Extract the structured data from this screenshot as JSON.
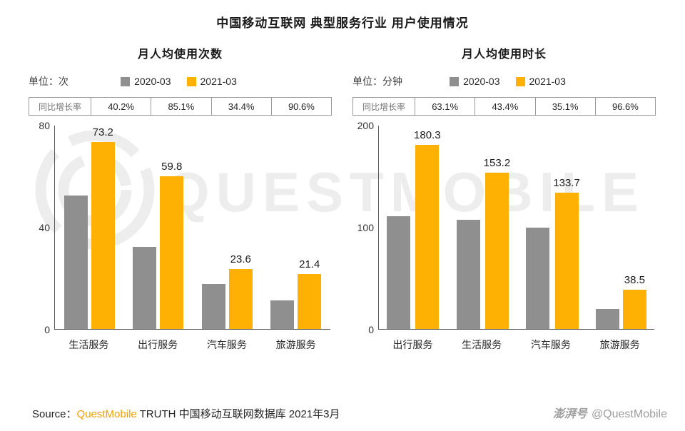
{
  "page": {
    "title": "中国移动互联网 典型服务行业 用户使用情况",
    "watermark": "QUESTMOBILE"
  },
  "footer": {
    "source_prefix": "Source：",
    "source_brand": "QuestMobile",
    "source_suffix": " TRUTH 中国移动互联网数据库 2021年3月",
    "credit_logo": "澎湃号",
    "credit_handle": "@QuestMobile"
  },
  "colors": {
    "series_2020": "#8f8f8f",
    "series_2021": "#ffb103",
    "brand_orange": "#f0a000",
    "watermark": "#ededed"
  },
  "chart_data": [
    {
      "type": "bar",
      "title": "月人均使用次数",
      "unit_label": "单位：次",
      "growth_label": "同比增长率",
      "growth_rates": [
        "40.2%",
        "85.1%",
        "34.4%",
        "90.6%"
      ],
      "categories": [
        "生活服务",
        "出行服务",
        "汽车服务",
        "旅游服务"
      ],
      "series": [
        {
          "name": "2020-03",
          "color_key": "series_2020",
          "show_labels": false,
          "values": [
            52.2,
            32.3,
            17.6,
            11.2
          ]
        },
        {
          "name": "2021-03",
          "color_key": "series_2021",
          "show_labels": true,
          "values": [
            73.2,
            59.8,
            23.6,
            21.4
          ]
        }
      ],
      "ylim": [
        0,
        80
      ],
      "yticks": [
        0,
        40,
        80
      ],
      "legend_position": "top",
      "grid": false
    },
    {
      "type": "bar",
      "title": "月人均使用时长",
      "unit_label": "单位：分钟",
      "growth_label": "同比增长率",
      "growth_rates": [
        "63.1%",
        "43.4%",
        "35.1%",
        "96.6%"
      ],
      "categories": [
        "出行服务",
        "生活服务",
        "汽车服务",
        "旅游服务"
      ],
      "series": [
        {
          "name": "2020-03",
          "color_key": "series_2020",
          "show_labels": false,
          "values": [
            110.6,
            106.8,
            99.0,
            19.6
          ]
        },
        {
          "name": "2021-03",
          "color_key": "series_2021",
          "show_labels": true,
          "values": [
            180.3,
            153.2,
            133.7,
            38.5
          ]
        }
      ],
      "ylim": [
        0,
        200
      ],
      "yticks": [
        0,
        100,
        200
      ],
      "legend_position": "top",
      "grid": false
    }
  ]
}
